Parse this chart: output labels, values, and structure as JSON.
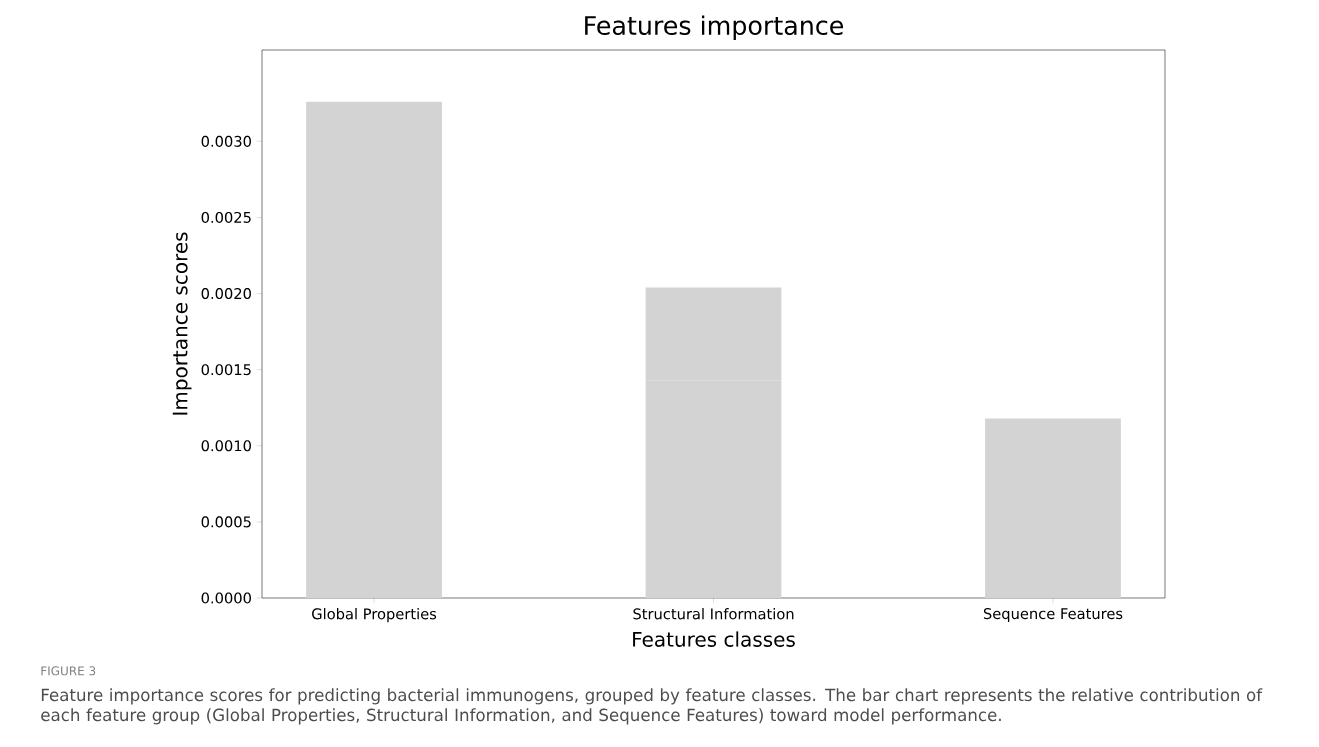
{
  "chart_data": {
    "type": "bar",
    "title": "Features importance",
    "xlabel": "Features classes",
    "ylabel": "Importance scores",
    "categories": [
      "Global Properties",
      "Structural Information",
      "Sequence Features"
    ],
    "stacked": true,
    "series": [
      {
        "color": "#d3d3d3",
        "values": [
          0.00326,
          null,
          0.00118
        ]
      },
      {
        "color": "#d3d3d3",
        "values": [
          null,
          0.00143,
          null
        ]
      },
      {
        "color": "#d3d3d3",
        "values": [
          null,
          0.00061,
          null
        ]
      }
    ],
    "ylim": [
      0,
      0.0036
    ],
    "yticks": [
      {
        "value": 0,
        "label": "0.0000"
      },
      {
        "value": 0.0005,
        "label": "0.0005"
      },
      {
        "value": 0.001,
        "label": "0.0010"
      },
      {
        "value": 0.0015,
        "label": "0.0015"
      },
      {
        "value": 0.002,
        "label": "0.0020"
      },
      {
        "value": 0.0025,
        "label": "0.0025"
      },
      {
        "value": 0.003,
        "label": "0.0030"
      }
    ],
    "grid": false,
    "annotations": [
      "FIGURE 3",
      "Feature importance scores for predicting bacterial immunogens, grouped by feature classes. The bar chart represents the relative contribution of each feature group (Global Properties, Structural Information, and Sequence Features) toward model performance."
    ]
  }
}
